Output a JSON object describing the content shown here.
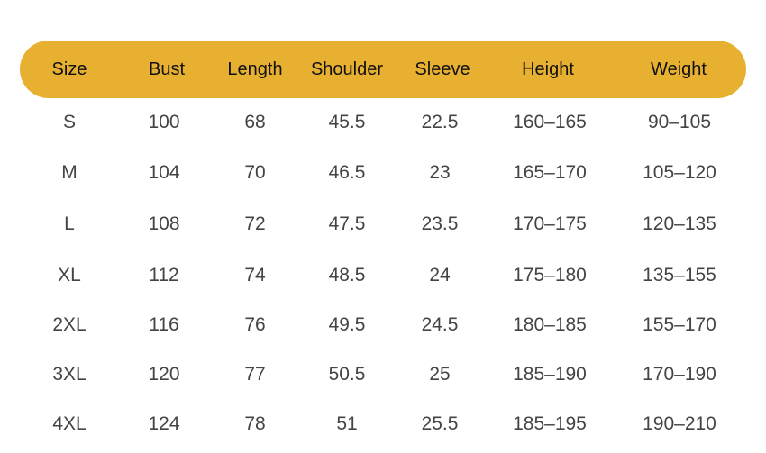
{
  "colors": {
    "header_bg": "#E8B030",
    "header_text": "#111111",
    "body_text": "#444444"
  },
  "table": {
    "headers": [
      "Size",
      "Bust",
      "Length",
      "Shoulder",
      "Sleeve",
      "Height",
      "Weight"
    ],
    "rows": [
      [
        "S",
        "100",
        "68",
        "45.5",
        "22.5",
        "160–165",
        "90–105"
      ],
      [
        "M",
        "104",
        "70",
        "46.5",
        "23",
        "165–170",
        "105–120"
      ],
      [
        "L",
        "108",
        "72",
        "47.5",
        "23.5",
        "170–175",
        "120–135"
      ],
      [
        "XL",
        "112",
        "74",
        "48.5",
        "24",
        "175–180",
        "135–155"
      ],
      [
        "2XL",
        "116",
        "76",
        "49.5",
        "24.5",
        "180–185",
        "155–170"
      ],
      [
        "3XL",
        "120",
        "77",
        "50.5",
        "25",
        "185–190",
        "170–190"
      ],
      [
        "4XL",
        "124",
        "78",
        "51",
        "25.5",
        "185–195",
        "190–210"
      ]
    ]
  }
}
